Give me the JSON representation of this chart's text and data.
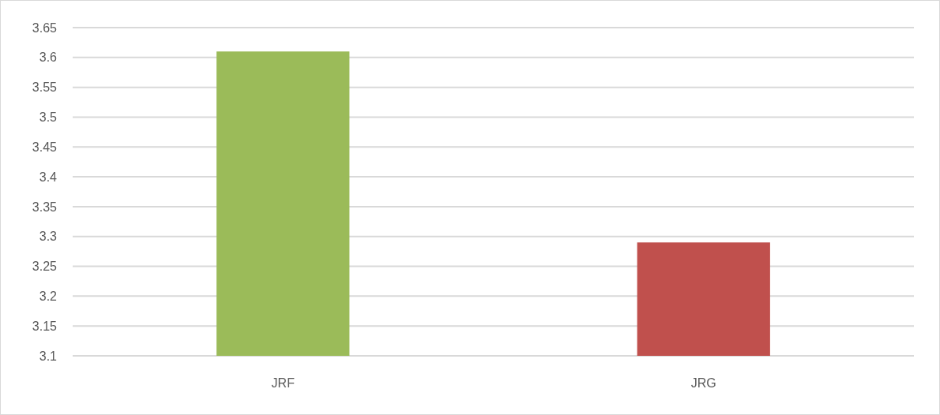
{
  "chart_data": {
    "type": "bar",
    "categories": [
      "JRF",
      "JRG"
    ],
    "values": [
      3.61,
      3.29
    ],
    "colors": [
      "#9bbb59",
      "#c0504d"
    ],
    "ylim": [
      3.1,
      3.65
    ],
    "yticks": [
      3.1,
      3.15,
      3.2,
      3.25,
      3.3,
      3.35,
      3.4,
      3.45,
      3.5,
      3.55,
      3.6,
      3.65
    ],
    "grid": "y"
  }
}
